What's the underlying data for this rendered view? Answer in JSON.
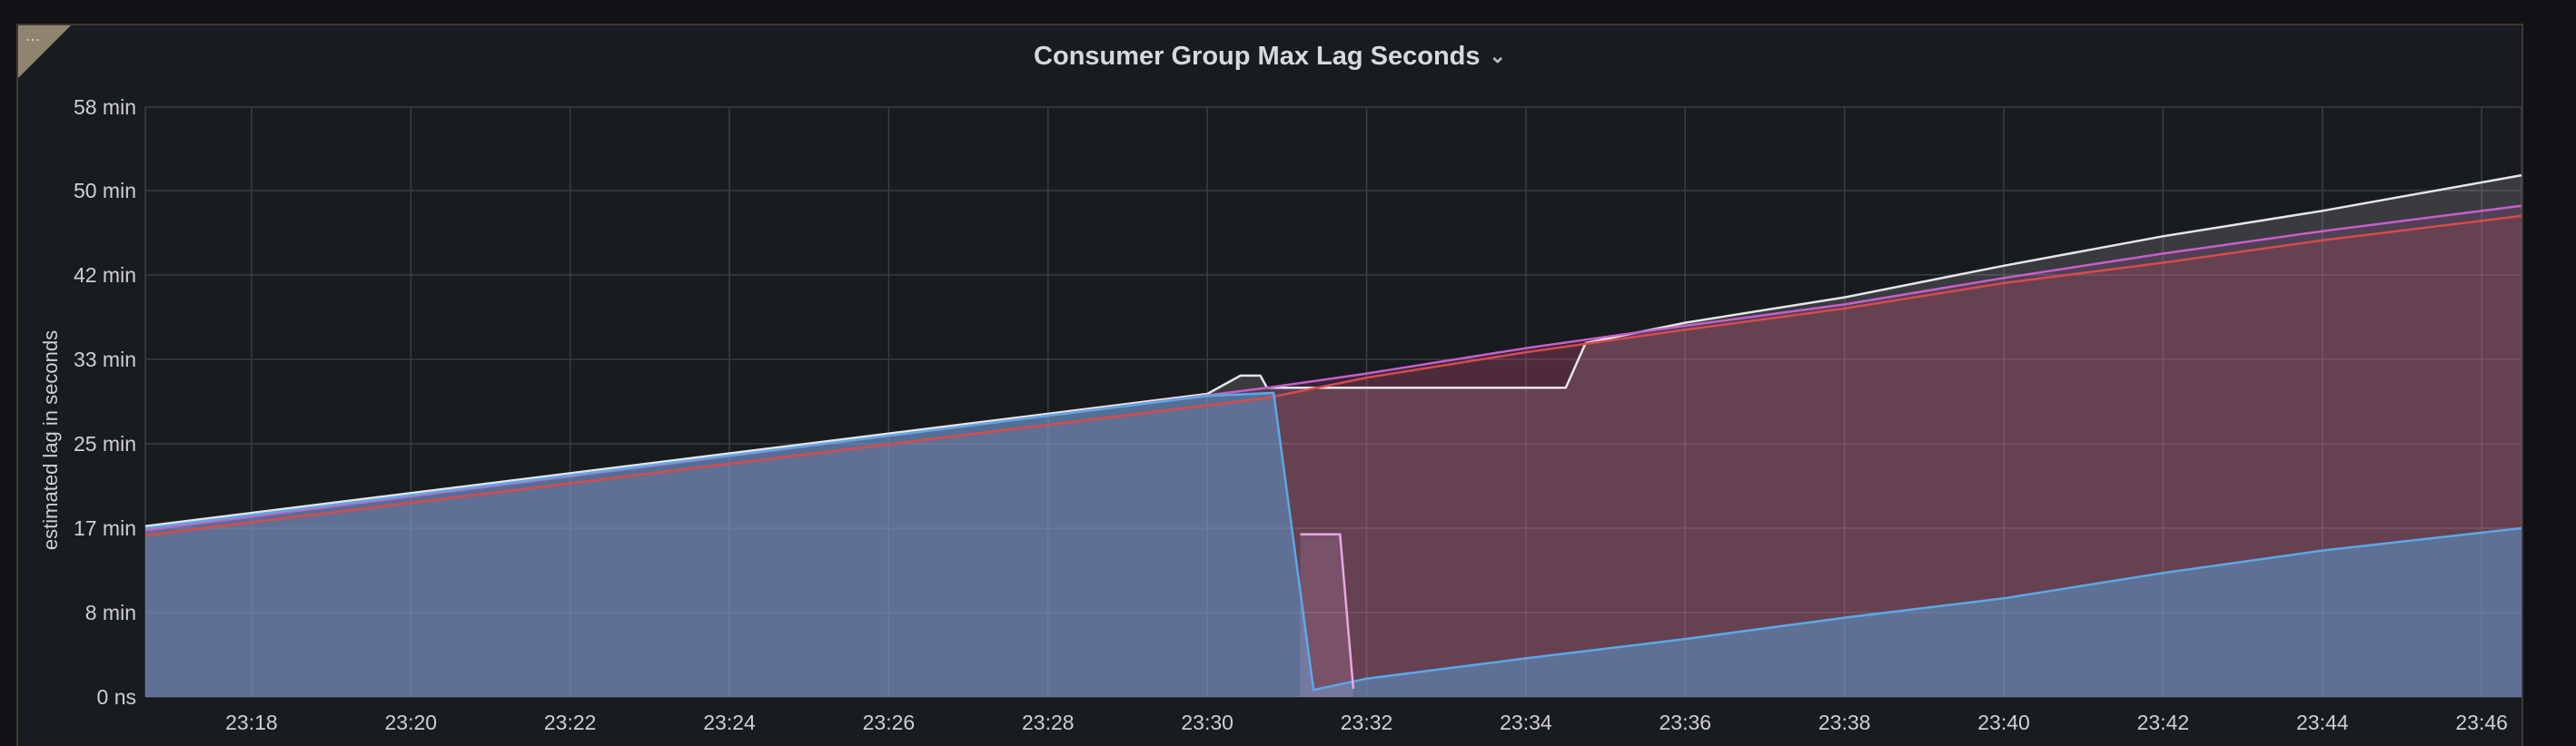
{
  "panel": {
    "title": "Consumer Group Max Lag Seconds",
    "menu_icon": "vertical-dots-icon",
    "dropdown_icon": "chevron-down-icon"
  },
  "chart_data": {
    "type": "area",
    "title": "Consumer Group Max Lag Seconds",
    "ylabel": "estimated lag in seconds",
    "xlabel": "",
    "y_unit": "min",
    "ylim": [
      0,
      58
    ],
    "xlim": [
      "23:16:40",
      "23:46:30"
    ],
    "y_ticks": [
      {
        "value": 0,
        "label": "0 ns"
      },
      {
        "value": 8.3,
        "label": "8 min"
      },
      {
        "value": 16.6,
        "label": "17 min"
      },
      {
        "value": 24.9,
        "label": "25 min"
      },
      {
        "value": 33.2,
        "label": "33 min"
      },
      {
        "value": 41.5,
        "label": "42 min"
      },
      {
        "value": 49.8,
        "label": "50 min"
      },
      {
        "value": 58.1,
        "label": "58 min"
      }
    ],
    "x_ticks": [
      "23:18",
      "23:20",
      "23:22",
      "23:24",
      "23:26",
      "23:28",
      "23:30",
      "23:32",
      "23:34",
      "23:36",
      "23:38",
      "23:40",
      "23:42",
      "23:44",
      "23:46"
    ],
    "grid": true,
    "legend": "none",
    "series": [
      {
        "color": "#e6e6e6",
        "x": [
          "23:16:40",
          "23:30:00",
          "23:30:25",
          "23:30:40",
          "23:30:45",
          "23:34:30",
          "23:34:45",
          "23:36:00",
          "23:38:00",
          "23:40:00",
          "23:42:00",
          "23:44:00",
          "23:46:30"
        ],
        "y": [
          16.8,
          29.8,
          31.6,
          31.6,
          30.4,
          30.4,
          34.8,
          36.8,
          39.3,
          42.4,
          45.3,
          47.8,
          51.3
        ]
      },
      {
        "color": "#c85fc8",
        "x": [
          "23:16:40",
          "23:30:45",
          "23:32:00",
          "23:34:00",
          "23:36:00",
          "23:38:00",
          "23:40:00",
          "23:42:00",
          "23:44:00",
          "23:46:30"
        ],
        "y": [
          16.4,
          30.4,
          31.8,
          34.3,
          36.5,
          38.6,
          41.2,
          43.6,
          45.8,
          48.3
        ]
      },
      {
        "color": "#d94a4a",
        "x": [
          "23:16:40",
          "23:30:45",
          "23:32:00",
          "23:34:00",
          "23:36:00",
          "23:38:00",
          "23:40:00",
          "23:42:00",
          "23:44:00",
          "23:46:30"
        ],
        "y": [
          15.9,
          29.4,
          31.4,
          33.9,
          36.1,
          38.2,
          40.7,
          42.7,
          44.9,
          47.3
        ]
      },
      {
        "color": "#5aa9e6",
        "x": [
          "23:16:40",
          "23:30:00",
          "23:30:50",
          "23:31:20",
          "23:32:00",
          "23:34:00",
          "23:36:00",
          "23:38:00",
          "23:40:00",
          "23:42:00",
          "23:44:00",
          "23:46:30"
        ],
        "y": [
          16.6,
          29.6,
          29.9,
          0.7,
          1.8,
          3.8,
          5.7,
          7.8,
          9.7,
          12.2,
          14.4,
          16.6
        ]
      },
      {
        "color": "#e8a8e0",
        "x": [
          "23:31:10",
          "23:31:40",
          "23:31:50"
        ],
        "y": [
          16.0,
          16.0,
          0.8
        ]
      }
    ]
  }
}
